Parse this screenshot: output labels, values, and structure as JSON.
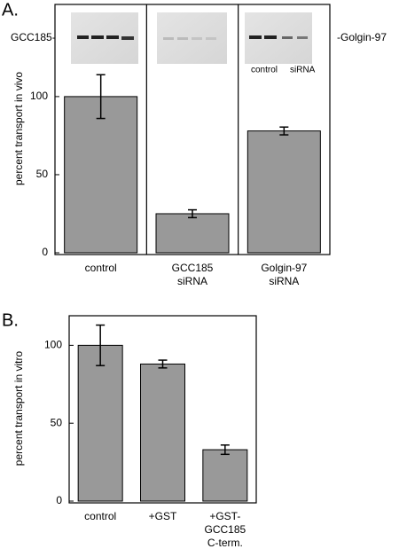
{
  "chart_data": [
    {
      "type": "bar",
      "panel_label": "A.",
      "ylabel": "percent transport in vivo",
      "categories": [
        "control",
        "GCC185\nsiRNA",
        "Golgin-97\nsiRNA"
      ],
      "values": [
        100,
        25,
        78
      ],
      "errors": [
        14,
        2.5,
        2.5
      ],
      "color": "#999999",
      "ylim": [
        0,
        159
      ],
      "yticks": [
        0,
        50,
        100
      ],
      "annotations": [
        "GCC185-",
        "-Golgin-97",
        "control",
        "siRNA"
      ]
    },
    {
      "type": "bar",
      "panel_label": "B.",
      "ylabel": "percent transport in vitro",
      "categories": [
        "control",
        "+GST",
        "+GST-\nGCC185\nC-term."
      ],
      "values": [
        100,
        88,
        33
      ],
      "errors": [
        13,
        2.5,
        3
      ],
      "color": "#999999",
      "ylim": [
        0,
        119
      ],
      "yticks": [
        0,
        50,
        100
      ]
    }
  ]
}
